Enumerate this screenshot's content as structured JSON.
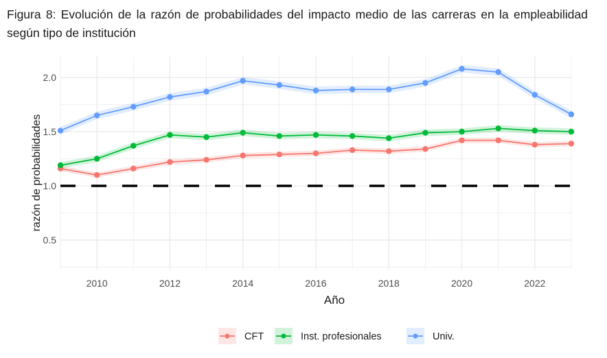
{
  "caption": "Figura 8: Evolución de la razón de probabilidades del impacto medio de las carreras en la empleabilidad según tipo de institución",
  "chart_data": {
    "type": "line",
    "title": "",
    "xlabel": "Año",
    "ylabel": "razón de probabilidades",
    "xlim": [
      2009,
      2023
    ],
    "ylim": [
      0.23,
      2.2
    ],
    "x_ticks": [
      2010,
      2012,
      2014,
      2016,
      2018,
      2020,
      2022
    ],
    "y_ticks": [
      0.5,
      1.0,
      1.5,
      2.0
    ],
    "y_tick_labels": [
      "0.5",
      "1.0",
      "1.5",
      "2.0"
    ],
    "grid": true,
    "reference_line": {
      "y": 1.0,
      "style": "dashed",
      "color": "#000000"
    },
    "x": [
      2009,
      2010,
      2011,
      2012,
      2013,
      2014,
      2015,
      2016,
      2017,
      2018,
      2019,
      2020,
      2021,
      2022,
      2023
    ],
    "series": [
      {
        "name": "CFT",
        "color": "#F8766D",
        "band_halfwidth": 0.025,
        "values": [
          1.16,
          1.1,
          1.16,
          1.22,
          1.24,
          1.28,
          1.29,
          1.3,
          1.33,
          1.32,
          1.34,
          1.42,
          1.42,
          1.38,
          1.39
        ]
      },
      {
        "name": "Inst. profesionales",
        "color": "#00BA38",
        "band_halfwidth": 0.03,
        "values": [
          1.19,
          1.25,
          1.37,
          1.47,
          1.45,
          1.49,
          1.46,
          1.47,
          1.46,
          1.44,
          1.49,
          1.5,
          1.53,
          1.51,
          1.5
        ]
      },
      {
        "name": "Univ.",
        "color": "#619CFF",
        "band_halfwidth": 0.035,
        "values": [
          1.51,
          1.65,
          1.73,
          1.82,
          1.87,
          1.97,
          1.93,
          1.88,
          1.89,
          1.89,
          1.95,
          2.08,
          2.05,
          1.84,
          1.66
        ]
      }
    ],
    "legend": {
      "position": "bottom",
      "entries": [
        "CFT",
        "Inst. profesionales",
        "Univ."
      ]
    }
  }
}
